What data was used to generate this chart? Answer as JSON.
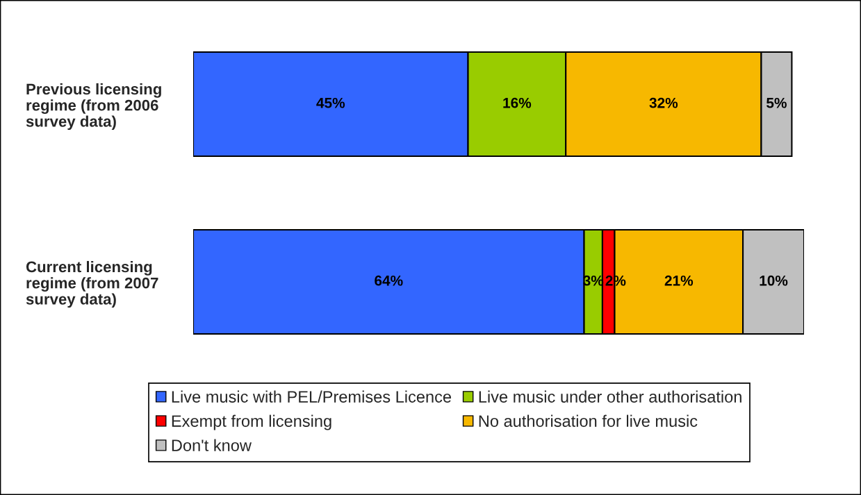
{
  "chart_data": {
    "type": "bar",
    "orientation": "horizontal",
    "stacked": true,
    "categories": [
      "Previous licensing\nregime (from 2006\nsurvey data)",
      "Current licensing\nregime (from 2007\nsurvey data)"
    ],
    "series": [
      {
        "name": "Live music with PEL/Premises Licence",
        "color": "#3366ff",
        "values": [
          45,
          64
        ],
        "value_labels": [
          "45%",
          "64%"
        ]
      },
      {
        "name": "Live music under other authorisation",
        "color": "#99cc00",
        "values": [
          16,
          3
        ],
        "value_labels": [
          "16%",
          "3%"
        ]
      },
      {
        "name": "Exempt from licensing",
        "color": "#ff0000",
        "values": [
          null,
          2
        ],
        "value_labels": [
          null,
          "2%"
        ]
      },
      {
        "name": "No authorisation for live music",
        "color": "#f7b800",
        "values": [
          32,
          21
        ],
        "value_labels": [
          "32%",
          "21%"
        ]
      },
      {
        "name": "Don't know",
        "color": "#c0c0c0",
        "values": [
          5,
          10
        ],
        "value_labels": [
          "5%",
          "10%"
        ]
      }
    ],
    "legend": "bottom",
    "tick_labels": "y"
  }
}
